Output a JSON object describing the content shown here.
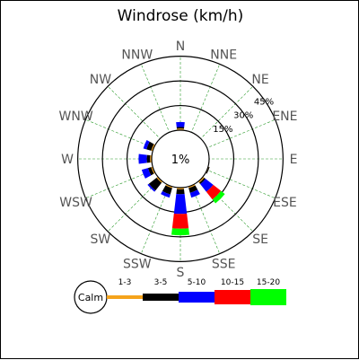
{
  "chart_data": {
    "type": "windrose",
    "title": "Windrose (km/h)",
    "directions": [
      "N",
      "NNE",
      "NE",
      "ENE",
      "E",
      "ESE",
      "SE",
      "SSE",
      "S",
      "SSW",
      "SW",
      "WSW",
      "W",
      "WNW",
      "NW",
      "NNW"
    ],
    "ring_labels": [
      "15%",
      "30%",
      "45%"
    ],
    "ring_percents": [
      15,
      30,
      45
    ],
    "calm_label": "1%",
    "calm_percent": 1,
    "legend_calm_label": "Calm",
    "speed_bins": [
      {
        "label": "1-3",
        "color": "#f5a31b"
      },
      {
        "label": "3-5",
        "color": "#000000"
      },
      {
        "label": "5-10",
        "color": "#0000ff"
      },
      {
        "label": "10-15",
        "color": "#ff0000"
      },
      {
        "label": "15-20",
        "color": "#00ff00"
      }
    ],
    "frequencies": [
      {
        "direction": "N",
        "values": [
          1,
          1,
          3,
          0,
          0
        ]
      },
      {
        "direction": "NNE",
        "values": [
          0,
          0,
          0,
          0,
          0
        ]
      },
      {
        "direction": "NE",
        "values": [
          0,
          0,
          0,
          0,
          0
        ]
      },
      {
        "direction": "ENE",
        "values": [
          0,
          0,
          0,
          0,
          0
        ]
      },
      {
        "direction": "E",
        "values": [
          0,
          0,
          0,
          0,
          0
        ]
      },
      {
        "direction": "ESE",
        "values": [
          0.5,
          0.5,
          0,
          0,
          0
        ]
      },
      {
        "direction": "SE",
        "values": [
          1,
          1,
          6,
          6,
          3
        ]
      },
      {
        "direction": "SSE",
        "values": [
          1,
          3,
          3,
          0,
          0
        ]
      },
      {
        "direction": "S",
        "values": [
          1,
          3,
          12,
          9,
          4
        ]
      },
      {
        "direction": "SSW",
        "values": [
          1,
          4,
          2,
          0,
          0
        ]
      },
      {
        "direction": "SW",
        "values": [
          1,
          6,
          1,
          0,
          0
        ]
      },
      {
        "direction": "WSW",
        "values": [
          1,
          2,
          4,
          0,
          0
        ]
      },
      {
        "direction": "W",
        "values": [
          1,
          2,
          5,
          0,
          0
        ]
      },
      {
        "direction": "WNW",
        "values": [
          1,
          3,
          2,
          0,
          0
        ]
      },
      {
        "direction": "NW",
        "values": [
          0,
          0,
          0,
          0,
          0
        ]
      },
      {
        "direction": "NNW",
        "values": [
          0,
          0,
          0,
          0,
          0
        ]
      }
    ]
  }
}
